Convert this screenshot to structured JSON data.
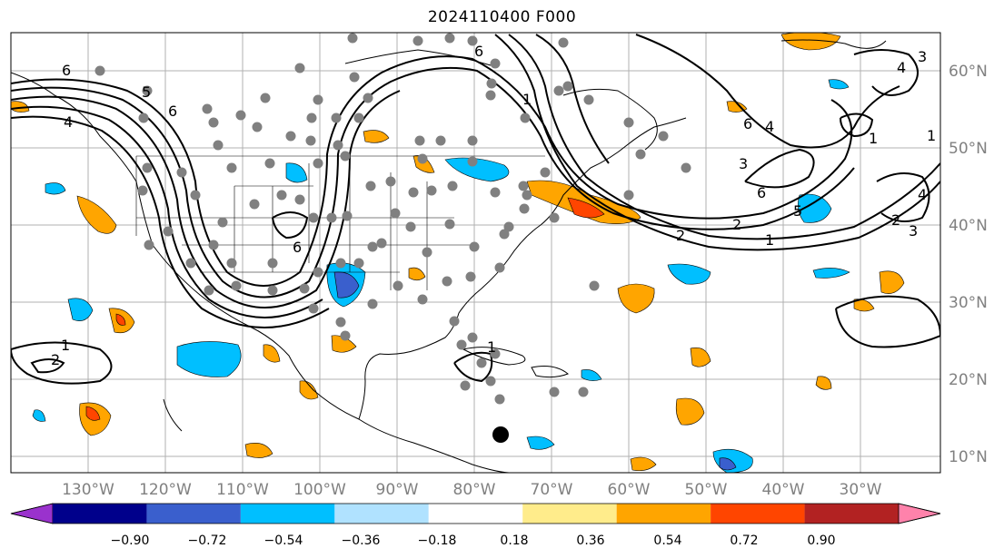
{
  "title": "2024110400 F000",
  "map": {
    "lon_labels": [
      "130°W",
      "120°W",
      "110°W",
      "100°W",
      "90°W",
      "80°W",
      "70°W",
      "60°W",
      "50°W",
      "40°W",
      "30°W"
    ],
    "lat_labels": [
      "60°N",
      "50°N",
      "40°N",
      "30°N",
      "20°N",
      "10°N"
    ],
    "contour_labels": [
      "6",
      "5",
      "6",
      "4",
      "1",
      "6",
      "6",
      "2",
      "1",
      "2",
      "1",
      "4",
      "6",
      "3",
      "6",
      "5",
      "1",
      "4",
      "3",
      "4",
      "3",
      "2",
      "1",
      "1",
      "2"
    ],
    "marker_label": ""
  },
  "colorbar": {
    "ticks": [
      "−0.90",
      "−0.72",
      "−0.54",
      "−0.36",
      "−0.18",
      "0.18",
      "0.36",
      "0.54",
      "0.72",
      "0.90"
    ],
    "colors": [
      "#9a32cd",
      "#00008b",
      "#3a5fcd",
      "#00bfff",
      "#b0e2ff",
      "#ffffff",
      "#ffec8b",
      "#ffa500",
      "#ff4500",
      "#b22222",
      "#ff82ab"
    ]
  }
}
